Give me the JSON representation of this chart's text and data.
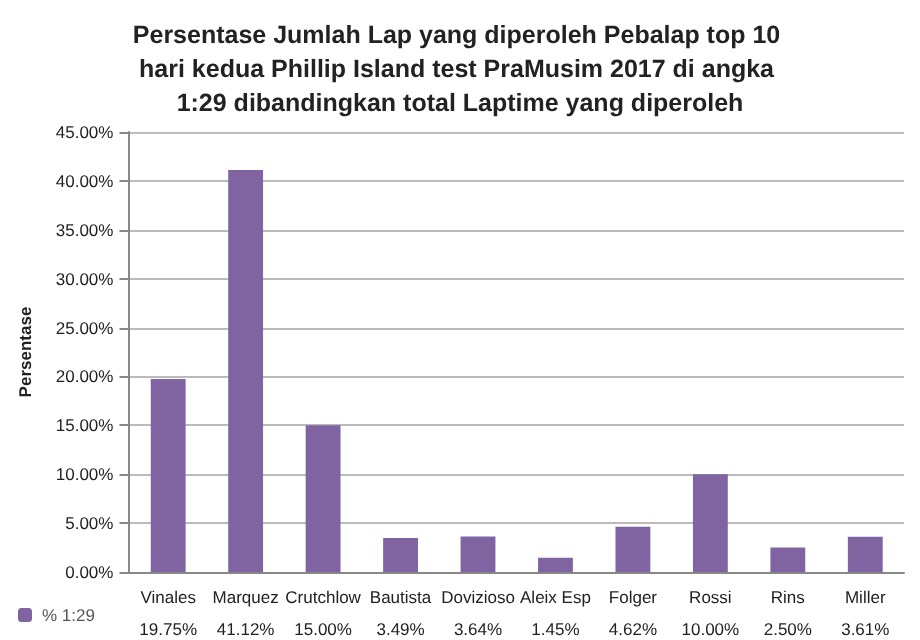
{
  "chart_data": {
    "type": "bar",
    "title": "Persentase Jumlah Lap yang diperoleh Pebalap top 10 hari kedua Phillip Island test PraMusim 2017 di angka 1:29 dibandingkan total Laptime yang diperoleh",
    "ylabel": "Persentase",
    "categories": [
      "Vinales",
      "Marquez",
      "Crutchlow",
      "Bautista",
      "Dovizioso",
      "Aleix Esp",
      "Folger",
      "Rossi",
      "Rins",
      "Miller"
    ],
    "series": [
      {
        "name": "% 1:29",
        "color": "#8064a2",
        "values": [
          19.75,
          41.12,
          15.0,
          3.49,
          3.64,
          1.45,
          4.62,
          10.0,
          2.5,
          3.61
        ],
        "value_labels": [
          "19.75%",
          "41.12%",
          "15.00%",
          "3.49%",
          "3.64%",
          "1.45%",
          "4.62%",
          "10.00%",
          "2.50%",
          "3.61%"
        ]
      }
    ],
    "ylim": [
      0,
      45
    ],
    "yticks": [
      {
        "value": 0,
        "label": "0.00%"
      },
      {
        "value": 5,
        "label": "5.00%"
      },
      {
        "value": 10,
        "label": "10.00%"
      },
      {
        "value": 15,
        "label": "15.00%"
      },
      {
        "value": 20,
        "label": "20.00%"
      },
      {
        "value": 25,
        "label": "25.00%"
      },
      {
        "value": 30,
        "label": "30.00%"
      },
      {
        "value": 35,
        "label": "35.00%"
      },
      {
        "value": 40,
        "label": "40.00%"
      },
      {
        "value": 45,
        "label": "45.00%"
      }
    ],
    "grid": "y",
    "legend": "bottom left"
  }
}
